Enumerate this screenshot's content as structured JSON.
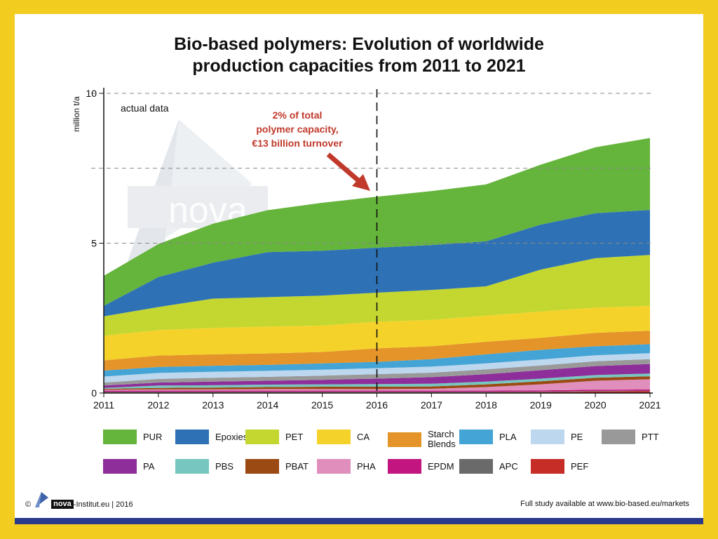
{
  "title_line1": "Bio-based polymers: Evolution of worldwide",
  "title_line2": "production capacities from 2011 to 2021",
  "chart_data": {
    "type": "area",
    "stacked": true,
    "title": "Bio-based polymers: Evolution of worldwide production capacities from 2011 to 2021",
    "ylabel": "million t/a",
    "xlabel": "",
    "ylim": [
      0,
      10
    ],
    "yticks": [
      0,
      5,
      10
    ],
    "x": [
      "2011",
      "2012",
      "2013",
      "2014",
      "2015",
      "2016",
      "2017",
      "2018",
      "2019",
      "2020",
      "2021"
    ],
    "grid": "dashed at 5, 7.5, 10",
    "marker": {
      "x": "2016",
      "style": "dashed vertical line"
    },
    "annotations": [
      {
        "text": "actual data"
      },
      {
        "text": "2% of total\npolymer capacity,\n€13 billion turnover",
        "color": "#c0392b"
      }
    ],
    "legend_position": "bottom",
    "series": [
      {
        "name": "PEF",
        "color": "#c62d26",
        "values": [
          0.02,
          0.02,
          0.02,
          0.02,
          0.02,
          0.02,
          0.02,
          0.02,
          0.03,
          0.05,
          0.06
        ]
      },
      {
        "name": "APC",
        "color": "#6a6a6a",
        "values": [
          0.02,
          0.02,
          0.02,
          0.02,
          0.02,
          0.02,
          0.02,
          0.02,
          0.02,
          0.02,
          0.02
        ]
      },
      {
        "name": "EPDM",
        "color": "#c2157f",
        "values": [
          0.04,
          0.04,
          0.04,
          0.04,
          0.04,
          0.04,
          0.04,
          0.04,
          0.04,
          0.04,
          0.04
        ]
      },
      {
        "name": "PHA",
        "color": "#e08fbd",
        "values": [
          0.03,
          0.04,
          0.04,
          0.05,
          0.05,
          0.05,
          0.06,
          0.12,
          0.2,
          0.3,
          0.34
        ]
      },
      {
        "name": "PBAT",
        "color": "#9a4a12",
        "values": [
          0.03,
          0.05,
          0.06,
          0.07,
          0.08,
          0.08,
          0.08,
          0.09,
          0.1,
          0.1,
          0.1
        ]
      },
      {
        "name": "PBS",
        "color": "#77c6c0",
        "values": [
          0.03,
          0.08,
          0.08,
          0.08,
          0.08,
          0.09,
          0.09,
          0.09,
          0.09,
          0.09,
          0.09
        ]
      },
      {
        "name": "PA",
        "color": "#8e2e9a",
        "values": [
          0.08,
          0.1,
          0.12,
          0.13,
          0.15,
          0.18,
          0.22,
          0.25,
          0.28,
          0.3,
          0.32
        ]
      },
      {
        "name": "PTT",
        "color": "#999999",
        "values": [
          0.1,
          0.12,
          0.13,
          0.13,
          0.14,
          0.15,
          0.15,
          0.16,
          0.16,
          0.16,
          0.16
        ]
      },
      {
        "name": "PE",
        "color": "#bcd7ee",
        "values": [
          0.2,
          0.2,
          0.2,
          0.2,
          0.2,
          0.2,
          0.2,
          0.2,
          0.2,
          0.2,
          0.2
        ]
      },
      {
        "name": "PLA",
        "color": "#44a4d6",
        "values": [
          0.2,
          0.2,
          0.2,
          0.2,
          0.21,
          0.21,
          0.25,
          0.3,
          0.32,
          0.3,
          0.3
        ]
      },
      {
        "name": "Starch\nBlends",
        "color": "#e49428",
        "values": [
          0.34,
          0.38,
          0.38,
          0.38,
          0.38,
          0.45,
          0.43,
          0.42,
          0.4,
          0.45,
          0.45
        ]
      },
      {
        "name": "CA",
        "color": "#f4d22a",
        "values": [
          0.82,
          0.85,
          0.88,
          0.9,
          0.88,
          0.89,
          0.88,
          0.87,
          0.88,
          0.84,
          0.83
        ]
      },
      {
        "name": "PET",
        "color": "#c3d730",
        "values": [
          0.65,
          0.77,
          0.98,
          0.98,
          1.0,
          0.97,
          1.0,
          0.98,
          1.4,
          1.65,
          1.7
        ]
      },
      {
        "name": "Epoxies",
        "color": "#2e72b5",
        "values": [
          0.35,
          1.0,
          1.2,
          1.5,
          1.5,
          1.5,
          1.5,
          1.5,
          1.5,
          1.5,
          1.5
        ]
      },
      {
        "name": "PUR",
        "color": "#65b43c",
        "values": [
          1.0,
          1.1,
          1.3,
          1.4,
          1.6,
          1.7,
          1.8,
          1.9,
          2.0,
          2.2,
          2.4
        ]
      }
    ]
  },
  "legend": [
    {
      "label": "PUR",
      "color": "#65b43c"
    },
    {
      "label": "Epoxies",
      "color": "#2e72b5"
    },
    {
      "label": "PET",
      "color": "#c3d730"
    },
    {
      "label": "CA",
      "color": "#f4d22a"
    },
    {
      "label": "Starch\nBlends",
      "color": "#e49428"
    },
    {
      "label": "PLA",
      "color": "#44a4d6"
    },
    {
      "label": "PE",
      "color": "#bcd7ee"
    },
    {
      "label": "PTT",
      "color": "#999999"
    },
    {
      "label": "PA",
      "color": "#8e2e9a"
    },
    {
      "label": "PBS",
      "color": "#77c6c0"
    },
    {
      "label": "PBAT",
      "color": "#9a4a12"
    },
    {
      "label": "PHA",
      "color": "#e08fbd"
    },
    {
      "label": "EPDM",
      "color": "#c2157f"
    },
    {
      "label": "APC",
      "color": "#6a6a6a"
    },
    {
      "label": "PEF",
      "color": "#c62d26"
    }
  ],
  "watermark_text": "nova",
  "footer": {
    "copyright": "©",
    "brand": "nova",
    "institute": "-Institut.eu | 2016",
    "study": "Full study available at www.bio-based.eu/markets"
  },
  "colors": {
    "background": "#f2cd1f",
    "bottom_bar": "#2a3a8c",
    "annotation": "#c0392b"
  }
}
